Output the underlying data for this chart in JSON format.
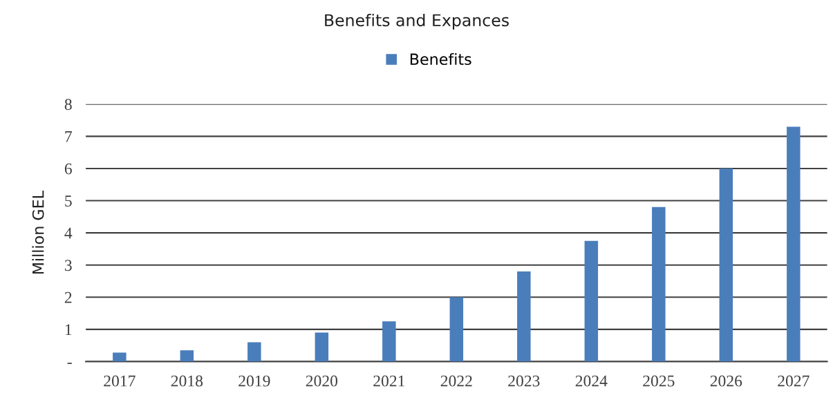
{
  "chart_data": {
    "type": "bar",
    "title": "Benefits and Expances",
    "ylabel": "Million GEL",
    "categories": [
      "2017",
      "2018",
      "2019",
      "2020",
      "2021",
      "2022",
      "2023",
      "2024",
      "2025",
      "2026",
      "2027"
    ],
    "series": [
      {
        "name": "Benefits",
        "color": "#4a7ebb",
        "values": [
          0.28,
          0.35,
          0.6,
          0.9,
          1.25,
          2.0,
          2.8,
          3.75,
          4.8,
          6.0,
          7.3
        ]
      }
    ],
    "ylim": [
      0,
      8
    ],
    "yticks": [
      {
        "value": 0,
        "label": "-"
      },
      1,
      2,
      3,
      4,
      5,
      6,
      7,
      8
    ],
    "grid": "y",
    "legend": "top"
  }
}
